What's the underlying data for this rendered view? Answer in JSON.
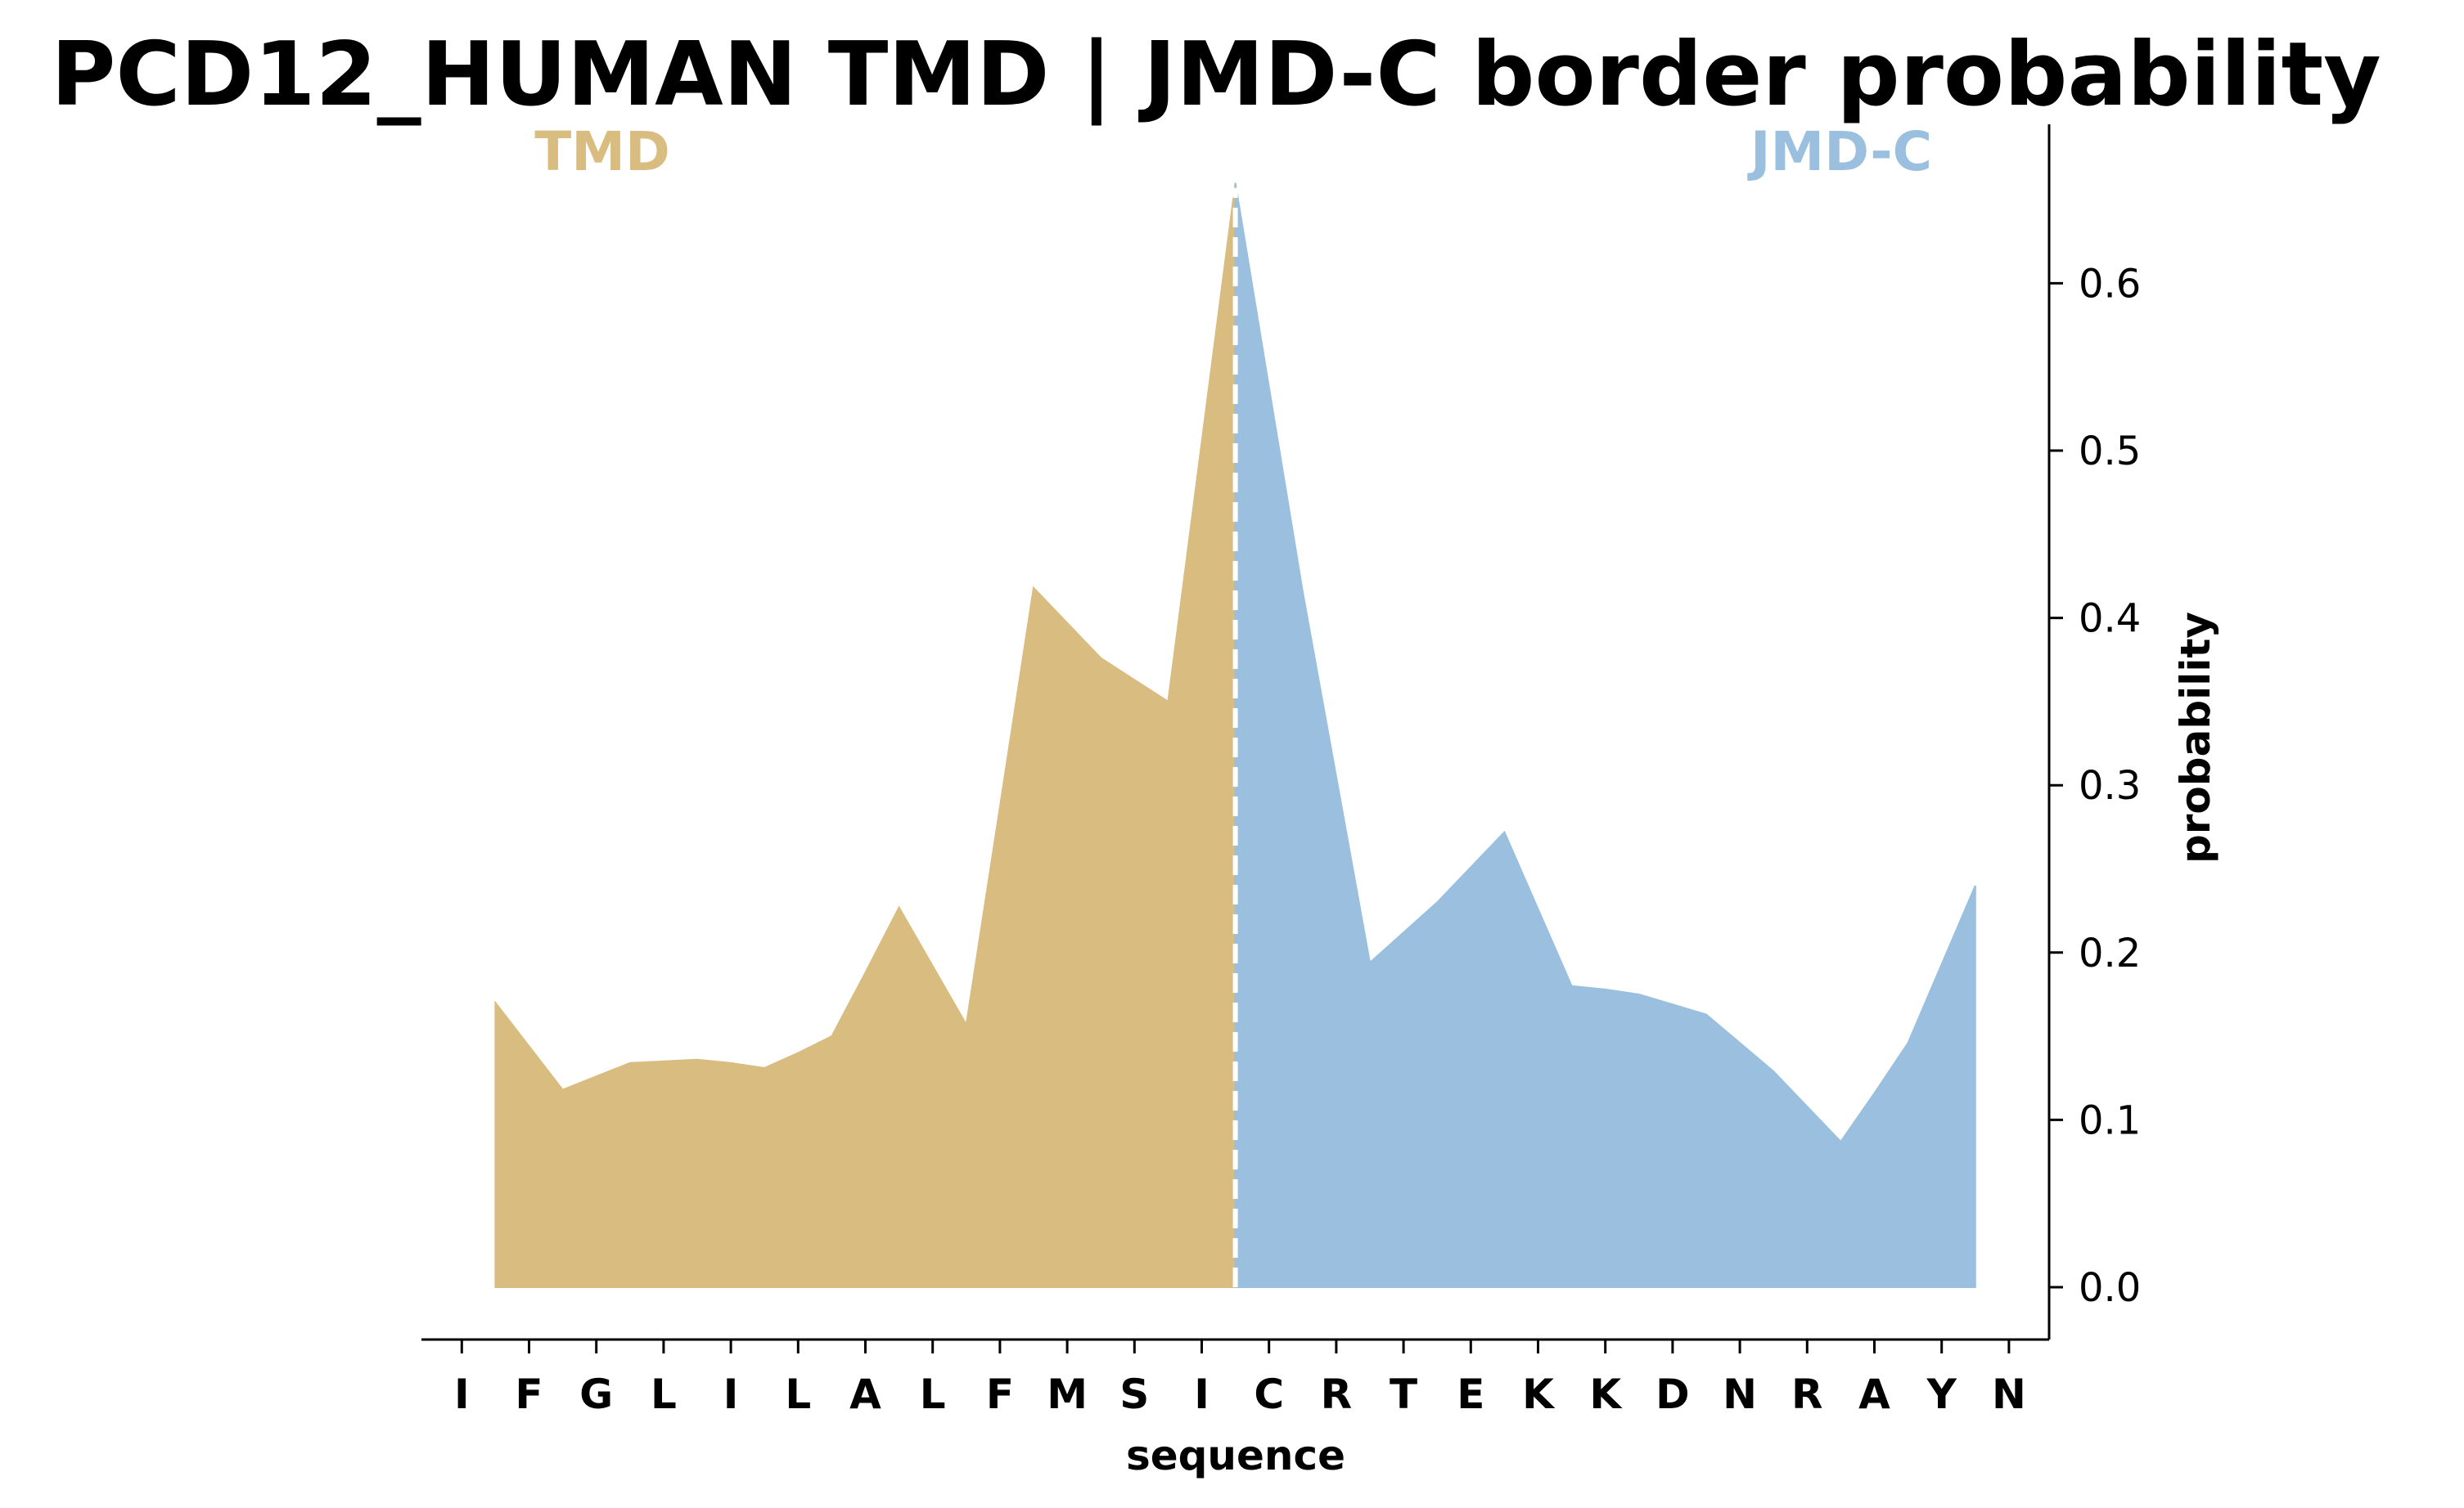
{
  "chart_data": {
    "type": "area",
    "title": "PCD12_HUMAN TMD | JMD-C border probability",
    "xlabel": "sequence",
    "ylabel": "probability",
    "y_axis_side": "right",
    "ylim": [
      -0.03,
      0.69
    ],
    "y_ticks": [
      0.0,
      0.1,
      0.2,
      0.3,
      0.4,
      0.5,
      0.6
    ],
    "y_tick_labels": [
      "0.0",
      "0.1",
      "0.2",
      "0.3",
      "0.4",
      "0.5",
      "0.6"
    ],
    "sequence": [
      "I",
      "F",
      "G",
      "L",
      "I",
      "L",
      "A",
      "L",
      "F",
      "M",
      "S",
      "I",
      "C",
      "R",
      "T",
      "E",
      "K",
      "K",
      "D",
      "N",
      "R",
      "A",
      "Y",
      "N"
    ],
    "regions": [
      {
        "name": "TMD",
        "color": "#D9BC80",
        "label_position": "top-left"
      },
      {
        "name": "JMD-C",
        "color": "#9BBFDE",
        "label_position": "top-right"
      }
    ],
    "border_position": 11.5,
    "border_line_color": "#ffffff",
    "x": [
      0.5,
      1.0,
      1.5,
      2.0,
      2.5,
      3.0,
      3.5,
      4.0,
      4.5,
      5.0,
      5.5,
      6.0,
      6.5,
      7.0,
      7.5,
      8.0,
      8.5,
      9.0,
      9.5,
      10.0,
      10.5,
      11.0,
      11.5,
      12.0,
      12.5,
      13.0,
      13.5,
      14.0,
      14.5,
      15.0,
      15.5,
      16.0,
      16.5,
      17.0,
      17.5,
      18.0,
      18.5,
      19.0,
      19.5,
      20.0,
      20.5,
      21.0,
      21.5,
      22.0,
      22.5
    ],
    "values": [
      0.17,
      0.144,
      0.118,
      0.126,
      0.134,
      0.135,
      0.136,
      0.134,
      0.131,
      0.14,
      0.15,
      0.188,
      0.227,
      0.192,
      0.157,
      0.287,
      0.418,
      0.397,
      0.376,
      0.363,
      0.35,
      0.505,
      0.66,
      0.538,
      0.416,
      0.305,
      0.194,
      0.212,
      0.23,
      0.251,
      0.272,
      0.226,
      0.18,
      0.178,
      0.175,
      0.169,
      0.163,
      0.146,
      0.129,
      0.108,
      0.087,
      0.116,
      0.146,
      0.193,
      0.24
    ]
  }
}
